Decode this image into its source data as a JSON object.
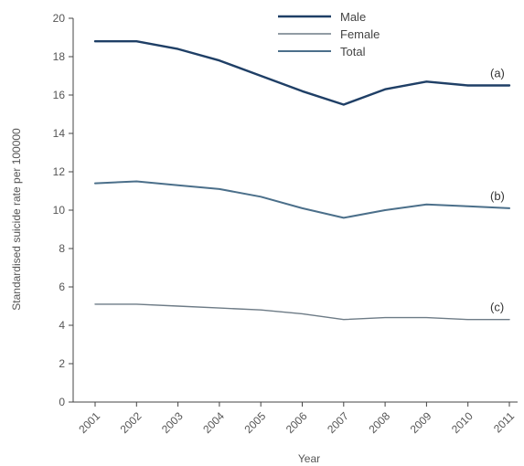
{
  "chart_data": {
    "type": "line",
    "xlabel": "Year",
    "ylabel": "Standardised suicide rate per 100000",
    "ylim": [
      0,
      20
    ],
    "yticks": [
      0,
      2,
      4,
      6,
      8,
      10,
      12,
      14,
      16,
      18,
      20
    ],
    "categories": [
      "2001",
      "2002",
      "2003",
      "2004",
      "2005",
      "2006",
      "2007",
      "2008",
      "2009",
      "2010",
      "2011"
    ],
    "series": [
      {
        "name": "Male",
        "label": "(a)",
        "color": "#1f3f66",
        "values": [
          18.8,
          18.8,
          18.4,
          17.8,
          17.0,
          16.2,
          15.5,
          16.3,
          16.7,
          16.5,
          16.5
        ]
      },
      {
        "name": "Female",
        "label": "(c)",
        "color": "#6d7b86",
        "values": [
          5.1,
          5.1,
          5.0,
          4.9,
          4.8,
          4.6,
          4.3,
          4.4,
          4.4,
          4.3,
          4.3
        ]
      },
      {
        "name": "Total",
        "label": "(b)",
        "color": "#4b6f8a",
        "values": [
          11.4,
          11.5,
          11.3,
          11.1,
          10.7,
          10.1,
          9.6,
          10.0,
          10.3,
          10.2,
          10.1
        ]
      }
    ],
    "legend_position": "top-center"
  }
}
